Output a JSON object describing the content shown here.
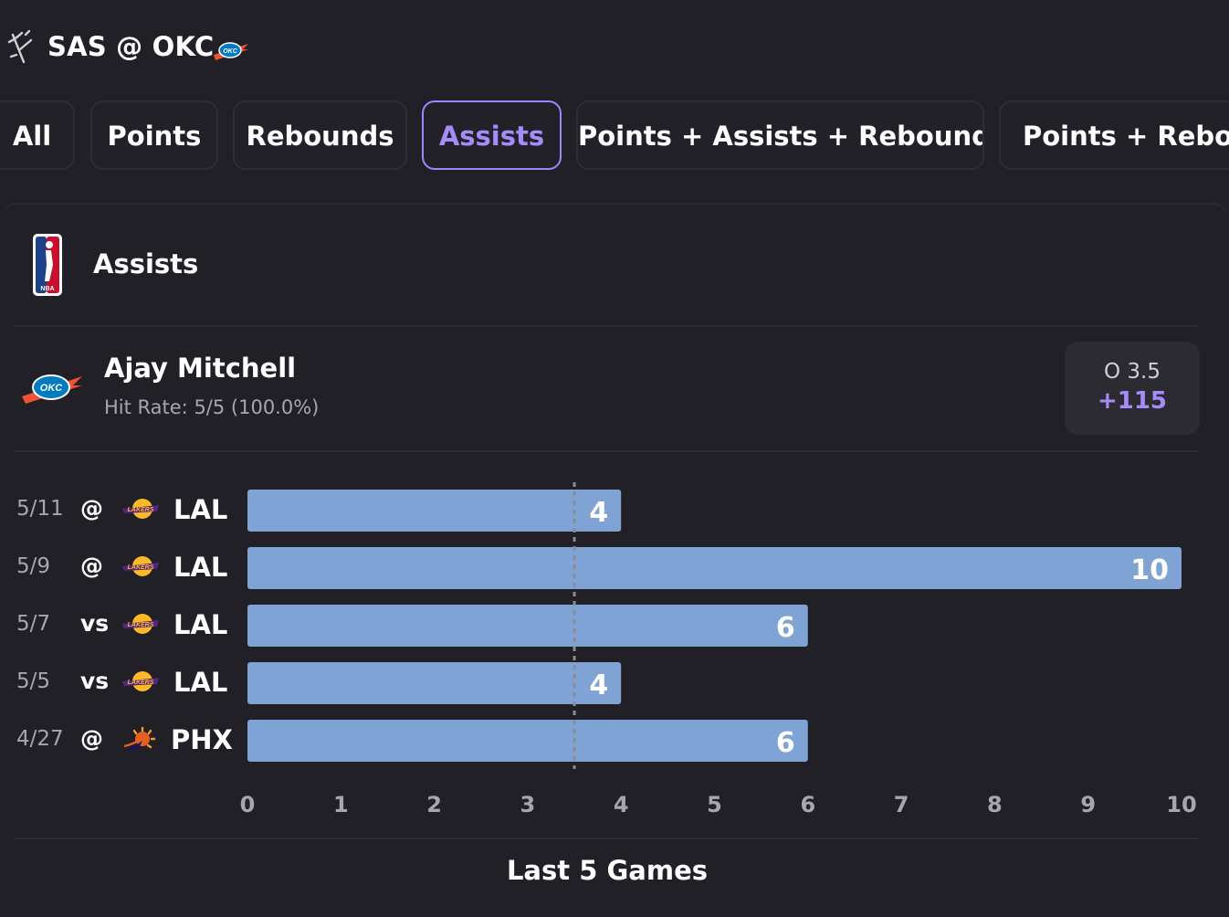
{
  "header": {
    "game_title": "SAS @ OKC",
    "icons": [
      "spurs-logo",
      "thunder-logo"
    ]
  },
  "tabs": [
    {
      "label": "All",
      "active": false
    },
    {
      "label": "Points",
      "active": false
    },
    {
      "label": "Rebounds",
      "active": false
    },
    {
      "label": "Assists",
      "active": true
    },
    {
      "label": "Points + Assists + Rebounds",
      "active": false
    },
    {
      "label": "Points + Rebounds",
      "active": false
    }
  ],
  "panel": {
    "league_icon": "nba-logo",
    "stat_title": "Assists",
    "player": {
      "name": "Ajay Mitchell",
      "team_icon": "thunder-logo",
      "hit_rate": "Hit Rate: 5/5 (100.0%)"
    },
    "odds": {
      "line": "O 3.5",
      "price": "+115"
    }
  },
  "games": [
    {
      "date": "5/11",
      "loc": "@",
      "opp": "LAL",
      "opp_icon": "lakers-logo"
    },
    {
      "date": "5/9",
      "loc": "@",
      "opp": "LAL",
      "opp_icon": "lakers-logo"
    },
    {
      "date": "5/7",
      "loc": "vs",
      "opp": "LAL",
      "opp_icon": "lakers-logo"
    },
    {
      "date": "5/5",
      "loc": "vs",
      "opp": "LAL",
      "opp_icon": "lakers-logo"
    },
    {
      "date": "4/27",
      "loc": "@",
      "opp": "PHX",
      "opp_icon": "suns-logo"
    }
  ],
  "chart_data": {
    "type": "bar",
    "orientation": "horizontal",
    "categories": [
      "5/11",
      "5/9",
      "5/7",
      "5/5",
      "4/27"
    ],
    "values": [
      4,
      10,
      6,
      4,
      6
    ],
    "xlim": [
      0,
      10
    ],
    "xticks": [
      0,
      1,
      2,
      3,
      4,
      5,
      6,
      7,
      8,
      9,
      10
    ],
    "reference_line": 3.5,
    "bar_color": "#7ea3d4",
    "grid": false
  },
  "footer": {
    "title": "Last 5 Games"
  },
  "colors": {
    "background": "#222027",
    "accent": "#a78bfa",
    "bar": "#7ea3d4"
  }
}
